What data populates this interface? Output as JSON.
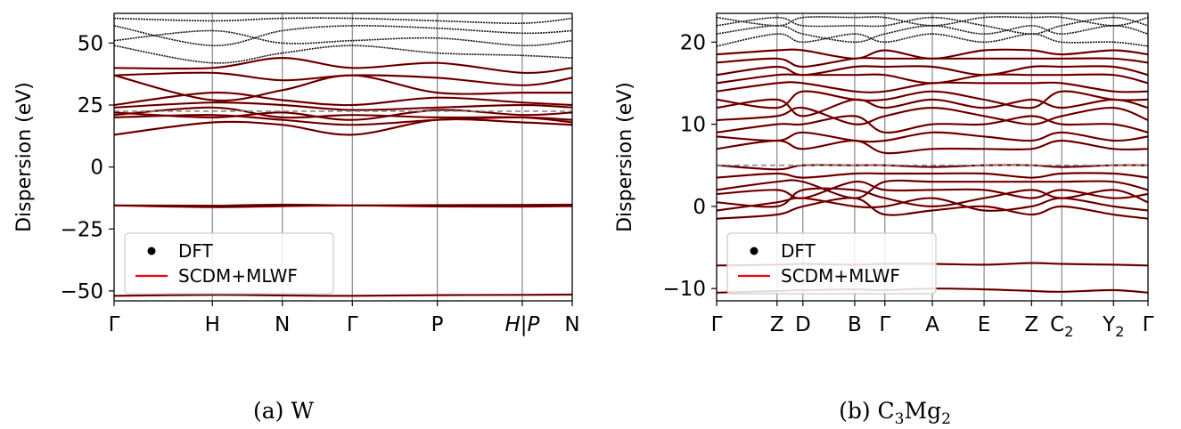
{
  "chart_data": [
    {
      "type": "line",
      "caption": "(a) W",
      "ylabel": "Dispersion (eV)",
      "ylim": [
        -54,
        62
      ],
      "yticks": [
        -50,
        -25,
        0,
        25,
        50
      ],
      "ytick_labels": [
        "−50",
        "−25",
        "0",
        "25",
        "50"
      ],
      "xlim": [
        0,
        5.5
      ],
      "kpoints": [
        {
          "label": "Γ",
          "x": 0
        },
        {
          "label": "H",
          "x": 1.18
        },
        {
          "label": "N",
          "x": 2.02
        },
        {
          "label": "Γ",
          "x": 2.86
        },
        {
          "label": "P",
          "x": 3.88
        },
        {
          "label": "H|P",
          "x": 4.9
        },
        {
          "label": "N",
          "x": 5.5
        }
      ],
      "fermi_level": 22.5,
      "legend": {
        "placement": "lower-left",
        "entries": [
          {
            "label": "DFT",
            "marker": "dot",
            "color": "#000000"
          },
          {
            "label": "SCDM+MLWF",
            "marker": "line",
            "color": "#ff0000"
          }
        ]
      },
      "bands": [
        {
          "kind": "both",
          "values": [
            -52,
            -51.6,
            -51.8,
            -52,
            -51.7,
            -51.6,
            -51.5
          ]
        },
        {
          "kind": "both",
          "values": [
            -15.5,
            -16.2,
            -15.8,
            -15.5,
            -15.9,
            -16,
            -15.8
          ]
        },
        {
          "kind": "both",
          "values": [
            -15.5,
            -15.6,
            -15.2,
            -15.5,
            -15.4,
            -15.3,
            -15.2
          ]
        },
        {
          "kind": "both",
          "values": [
            13,
            18,
            17,
            13,
            19,
            18,
            17
          ]
        },
        {
          "kind": "both",
          "values": [
            20,
            21,
            19,
            17,
            19,
            20,
            19
          ]
        },
        {
          "kind": "both",
          "values": [
            21,
            24,
            20,
            21,
            20,
            20,
            18
          ]
        },
        {
          "kind": "both",
          "values": [
            22,
            20,
            22,
            19,
            23,
            21,
            22
          ]
        },
        {
          "kind": "both",
          "values": [
            24,
            26,
            25,
            23,
            24,
            25,
            24
          ]
        },
        {
          "kind": "both",
          "values": [
            25,
            30,
            27,
            25,
            28,
            26,
            25
          ]
        },
        {
          "kind": "both",
          "values": [
            37,
            27,
            31,
            37,
            30,
            30,
            30
          ]
        },
        {
          "kind": "both",
          "values": [
            37,
            38,
            35,
            37,
            36,
            33,
            36
          ]
        },
        {
          "kind": "mixed",
          "values": [
            40,
            40,
            44,
            40,
            42,
            38,
            40
          ]
        },
        {
          "kind": "dft",
          "values": [
            49,
            42,
            46,
            49,
            46,
            45,
            44
          ]
        },
        {
          "kind": "dft",
          "values": [
            51,
            55,
            50,
            51,
            52,
            49,
            51
          ]
        },
        {
          "kind": "dft",
          "values": [
            57,
            49,
            55,
            57,
            56,
            54,
            55
          ]
        },
        {
          "kind": "dft",
          "values": [
            60,
            59,
            60,
            60,
            59,
            58,
            60
          ]
        }
      ]
    },
    {
      "type": "line",
      "caption": "(b) C3Mg2",
      "caption_parts": {
        "prefix": "(b) C",
        "sub1": "3",
        "mid": "Mg",
        "sub2": "2"
      },
      "ylabel": "Dispersion (eV)",
      "ylim": [
        -11.5,
        23.5
      ],
      "yticks": [
        -10,
        0,
        10,
        20
      ],
      "ytick_labels": [
        "−10",
        "0",
        "10",
        "20"
      ],
      "xlim": [
        0,
        10
      ],
      "kpoints": [
        {
          "label": "Γ",
          "x": 0
        },
        {
          "label": "Z",
          "x": 1.4
        },
        {
          "label": "D",
          "x": 2.0
        },
        {
          "label": "B",
          "x": 3.2
        },
        {
          "label": "Γ",
          "x": 3.9
        },
        {
          "label": "A",
          "x": 5.0
        },
        {
          "label": "E",
          "x": 6.2
        },
        {
          "label": "Z",
          "x": 7.3
        },
        {
          "label": "C2",
          "x": 8.0
        },
        {
          "label": "Y2",
          "x": 9.2
        },
        {
          "label": "Γ",
          "x": 10.0
        }
      ],
      "kpoint_label_parts": {
        "8": [
          "C",
          "2"
        ],
        "9": [
          "Y",
          "2"
        ]
      },
      "fermi_level": 5,
      "legend": {
        "placement": "lower-left",
        "entries": [
          {
            "label": "DFT",
            "marker": "dot",
            "color": "#000000"
          },
          {
            "label": "SCDM+MLWF",
            "marker": "line",
            "color": "#ff0000"
          }
        ]
      },
      "bands": [
        {
          "kind": "both",
          "values": [
            -10.5,
            -10.3,
            -10.2,
            -10.1,
            -10.2,
            -10,
            -10.1,
            -10.3,
            -10.4,
            -10.2,
            -10.5
          ]
        },
        {
          "kind": "both",
          "values": [
            -7.2,
            -7.1,
            -7,
            -7.1,
            -7,
            -7,
            -7.1,
            -6.9,
            -7,
            -7.1,
            -7.2
          ]
        },
        {
          "kind": "both",
          "values": [
            -1.5,
            -1,
            0,
            1,
            -1,
            -0.5,
            0,
            -1,
            0,
            -1,
            -1.5
          ]
        },
        {
          "kind": "both",
          "values": [
            -0.5,
            0.5,
            1,
            0,
            0,
            1,
            -0.5,
            0,
            1,
            0,
            -0.5
          ]
        },
        {
          "kind": "both",
          "values": [
            0.5,
            0,
            2,
            2,
            1,
            0,
            1,
            2,
            1,
            2,
            0.5
          ]
        },
        {
          "kind": "both",
          "values": [
            1.5,
            2,
            1,
            3,
            2,
            2,
            2,
            1,
            2,
            1,
            1.5
          ]
        },
        {
          "kind": "both",
          "values": [
            2,
            3,
            3,
            1,
            3,
            3,
            3,
            3,
            3,
            3,
            2
          ]
        },
        {
          "kind": "both",
          "values": [
            3.5,
            4,
            3.5,
            4,
            4,
            4,
            4,
            3.5,
            4,
            4,
            3.5
          ]
        },
        {
          "kind": "both",
          "values": [
            5,
            4.5,
            5,
            5,
            5,
            4.8,
            5,
            5,
            4.8,
            5,
            5
          ]
        },
        {
          "kind": "both",
          "values": [
            7,
            8,
            7,
            8,
            6.5,
            7,
            7,
            7,
            8,
            7,
            7
          ]
        },
        {
          "kind": "both",
          "values": [
            8.5,
            8,
            9,
            8,
            8,
            9,
            8.5,
            8,
            9,
            8,
            8.5
          ]
        },
        {
          "kind": "both",
          "values": [
            9,
            10,
            10,
            11,
            9,
            10,
            10,
            11,
            10,
            10,
            9
          ]
        },
        {
          "kind": "both",
          "values": [
            10.5,
            11,
            12,
            10,
            11,
            12,
            11,
            10,
            11,
            12,
            10.5
          ]
        },
        {
          "kind": "both",
          "values": [
            12,
            13,
            11,
            13,
            12,
            13,
            12,
            13,
            12,
            13,
            12
          ]
        },
        {
          "kind": "both",
          "values": [
            13,
            12,
            14,
            13,
            13,
            14,
            13,
            12,
            14,
            13,
            13
          ]
        },
        {
          "kind": "both",
          "values": [
            14,
            15,
            15,
            14,
            14,
            15,
            15,
            15,
            15,
            14,
            14
          ]
        },
        {
          "kind": "both",
          "values": [
            15,
            16,
            16,
            16,
            16,
            15,
            16,
            16,
            16,
            16,
            15
          ]
        },
        {
          "kind": "both",
          "values": [
            16,
            17,
            16,
            17,
            17,
            17,
            16,
            17,
            17,
            17,
            16
          ]
        },
        {
          "kind": "both",
          "values": [
            17.5,
            18,
            17,
            18,
            18,
            18,
            18,
            18,
            18,
            18,
            17.5
          ]
        },
        {
          "kind": "mixed",
          "values": [
            18.5,
            19,
            19,
            18,
            19,
            18,
            19,
            19,
            18.5,
            19,
            18.5
          ]
        },
        {
          "kind": "dft",
          "values": [
            19.5,
            21,
            20,
            21,
            20,
            21,
            20,
            21,
            20,
            20,
            19.5
          ]
        },
        {
          "kind": "dft",
          "values": [
            21,
            22,
            21,
            20,
            21,
            22,
            21,
            22,
            21,
            22,
            21
          ]
        },
        {
          "kind": "dft",
          "values": [
            22,
            23,
            22,
            22,
            22,
            23,
            22,
            21,
            22,
            23,
            22
          ]
        },
        {
          "kind": "dft",
          "values": [
            23,
            22,
            23,
            23,
            23,
            22,
            23,
            23,
            23,
            22,
            23
          ]
        }
      ]
    }
  ]
}
